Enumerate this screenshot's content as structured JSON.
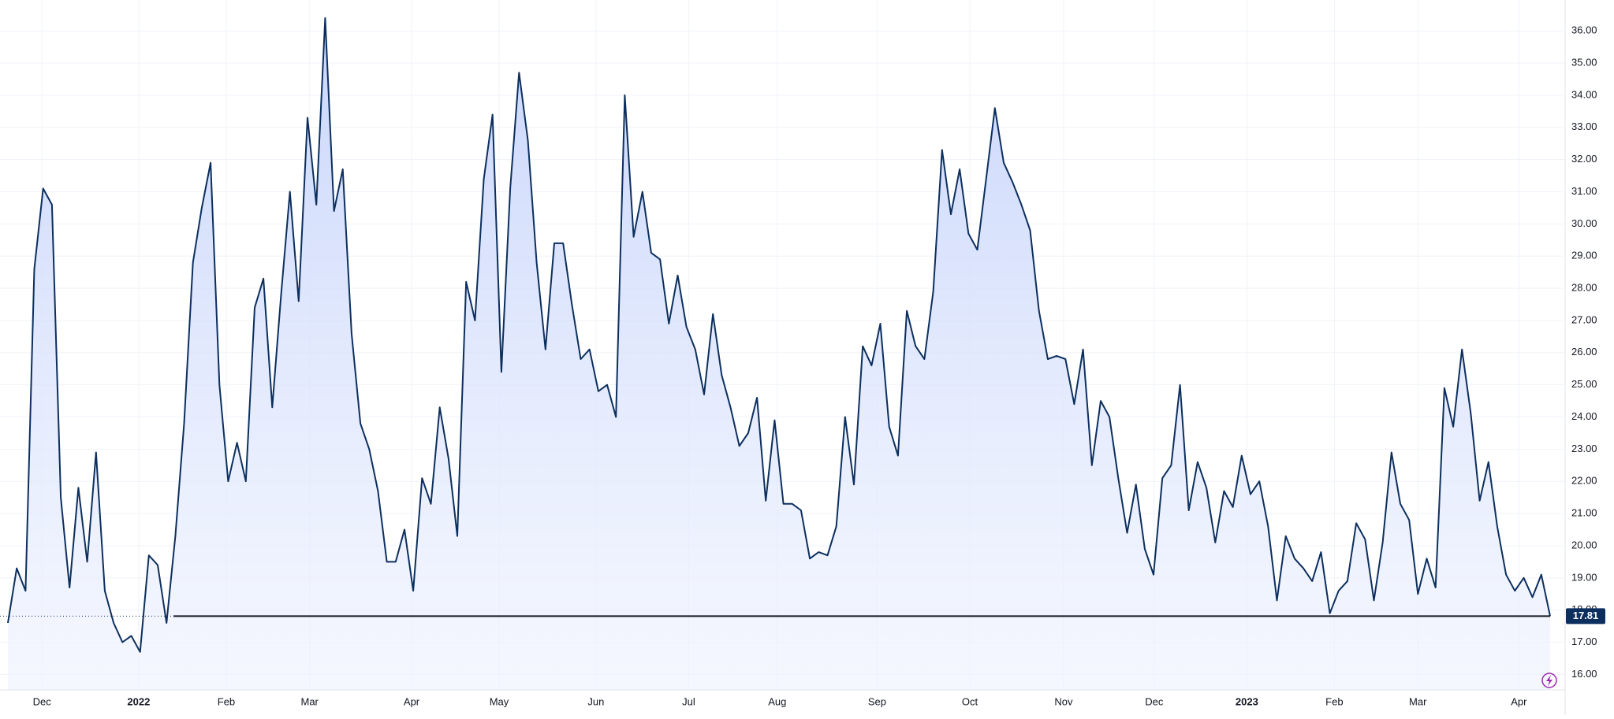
{
  "chart_data": {
    "type": "area",
    "color": "#0c2f5e",
    "fill": "#c9d7fb",
    "grid": true,
    "values": [
      17.6,
      19.3,
      18.6,
      28.6,
      31.1,
      30.6,
      21.5,
      18.7,
      21.8,
      19.5,
      22.9,
      18.6,
      17.6,
      17.0,
      17.2,
      16.7,
      19.7,
      19.4,
      17.6,
      20.3,
      23.8,
      28.8,
      30.5,
      31.9,
      25.0,
      22.0,
      23.2,
      22.0,
      27.4,
      28.3,
      24.3,
      27.8,
      31.0,
      27.6,
      33.3,
      30.6,
      36.4,
      30.4,
      31.7,
      26.6,
      23.8,
      23.0,
      21.7,
      19.5,
      19.5,
      20.5,
      18.6,
      22.1,
      21.3,
      24.3,
      22.7,
      20.3,
      28.2,
      27.0,
      31.4,
      33.4,
      25.4,
      31.1,
      34.7,
      32.6,
      28.8,
      26.1,
      29.4,
      29.4,
      27.5,
      25.8,
      26.1,
      24.8,
      25.0,
      24.0,
      34.0,
      29.6,
      31.0,
      29.1,
      28.9,
      26.9,
      28.4,
      26.8,
      26.1,
      24.7,
      27.2,
      25.3,
      24.3,
      23.1,
      23.5,
      24.6,
      21.4,
      23.9,
      21.3,
      21.3,
      21.1,
      19.6,
      19.8,
      19.7,
      20.6,
      24.0,
      21.9,
      26.2,
      25.6,
      26.9,
      23.7,
      22.8,
      27.3,
      26.2,
      25.8,
      27.9,
      32.3,
      30.3,
      31.7,
      29.7,
      29.2,
      31.4,
      33.6,
      31.9,
      31.3,
      30.6,
      29.8,
      27.3,
      25.8,
      25.9,
      25.8,
      24.4,
      26.1,
      22.5,
      24.5,
      24.0,
      22.1,
      20.4,
      21.9,
      19.9,
      19.1,
      22.1,
      22.5,
      25.0,
      21.1,
      22.6,
      21.8,
      20.1,
      21.7,
      21.2,
      22.8,
      21.6,
      22.0,
      20.6,
      18.3,
      20.3,
      19.6,
      19.3,
      18.9,
      19.8,
      17.9,
      18.6,
      18.9,
      20.7,
      20.2,
      18.3,
      20.1,
      22.9,
      21.3,
      20.8,
      18.5,
      19.6,
      18.7,
      24.9,
      23.7,
      26.1,
      24.1,
      21.4,
      22.6,
      20.6,
      19.1,
      18.6,
      19.0,
      18.4,
      19.1,
      17.81
    ],
    "xlim": [
      0,
      175
    ],
    "xticks": [
      {
        "value": 3.86,
        "label": "Dec"
      },
      {
        "value": 14.84,
        "label": "2022"
      },
      {
        "value": 24.78,
        "label": "Feb"
      },
      {
        "value": 34.24,
        "label": "Mar"
      },
      {
        "value": 45.81,
        "label": "Apr"
      },
      {
        "value": 55.74,
        "label": "May"
      },
      {
        "value": 66.73,
        "label": "Jun"
      },
      {
        "value": 77.25,
        "label": "Jul"
      },
      {
        "value": 87.3,
        "label": "Aug"
      },
      {
        "value": 98.63,
        "label": "Sep"
      },
      {
        "value": 109.15,
        "label": "Oct"
      },
      {
        "value": 119.79,
        "label": "Nov"
      },
      {
        "value": 130.07,
        "label": "Dec"
      },
      {
        "value": 140.59,
        "label": "2023"
      },
      {
        "value": 150.52,
        "label": "Feb"
      },
      {
        "value": 159.99,
        "label": "Mar"
      },
      {
        "value": 171.45,
        "label": "Apr"
      }
    ],
    "ylim": [
      15.52,
      36.96
    ],
    "yticks": [
      {
        "value": 16,
        "label": "16.00"
      },
      {
        "value": 17,
        "label": "17.00"
      },
      {
        "value": 18,
        "label": "18.00"
      },
      {
        "value": 19,
        "label": "19.00"
      },
      {
        "value": 20,
        "label": "20.00"
      },
      {
        "value": 21,
        "label": "21.00"
      },
      {
        "value": 22,
        "label": "22.00"
      },
      {
        "value": 23,
        "label": "23.00"
      },
      {
        "value": 24,
        "label": "24.00"
      },
      {
        "value": 25,
        "label": "25.00"
      },
      {
        "value": 26,
        "label": "26.00"
      },
      {
        "value": 27,
        "label": "27.00"
      },
      {
        "value": 28,
        "label": "28.00"
      },
      {
        "value": 29,
        "label": "29.00"
      },
      {
        "value": 30,
        "label": "30.00"
      },
      {
        "value": 31,
        "label": "31.00"
      },
      {
        "value": 32,
        "label": "32.00"
      },
      {
        "value": 33,
        "label": "33.00"
      },
      {
        "value": 34,
        "label": "34.00"
      },
      {
        "value": 35,
        "label": "35.00"
      },
      {
        "value": 36,
        "label": "36.00"
      }
    ],
    "last_label": "17.81"
  }
}
